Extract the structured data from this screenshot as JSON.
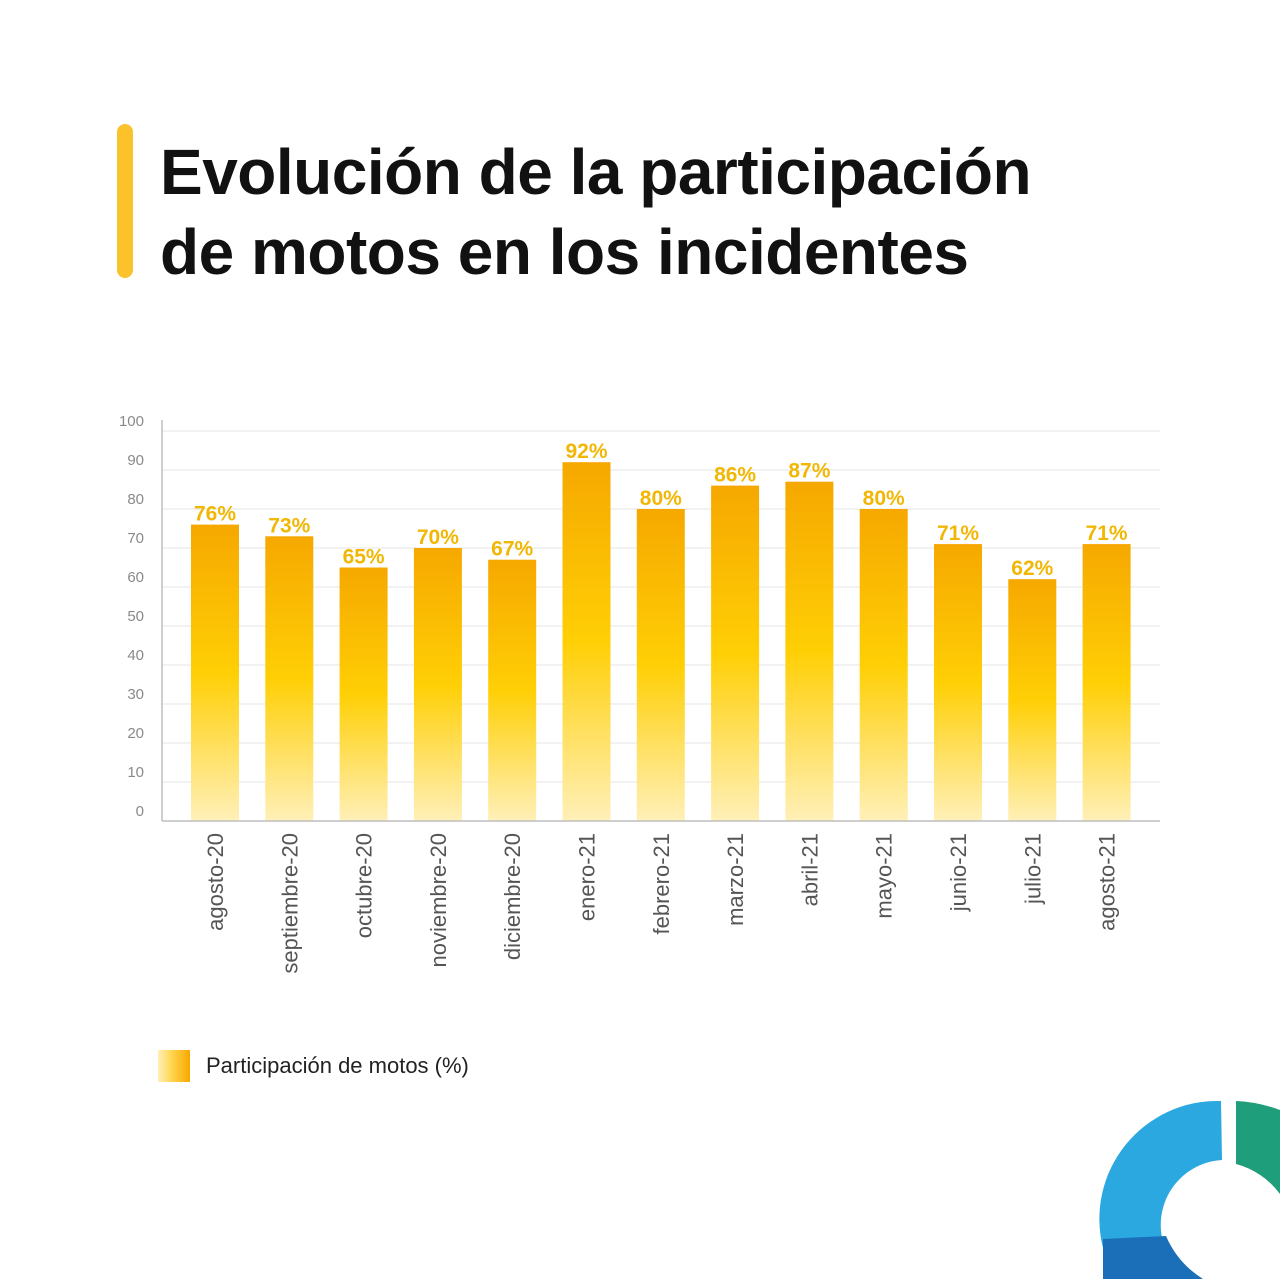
{
  "title_lines": [
    "Evolución de la participación",
    "de motos en los incidentes"
  ],
  "chart_data": {
    "type": "bar",
    "title": "Evolución de la participación de motos en los incidentes",
    "categories": [
      "agosto-20",
      "septiembre-20",
      "octubre-20",
      "noviembre-20",
      "diciembre-20",
      "enero-21",
      "febrero-21",
      "marzo-21",
      "abril-21",
      "mayo-21",
      "junio-21",
      "julio-21",
      "agosto-21"
    ],
    "series": [
      {
        "name": "Participación de motos (%)",
        "values": [
          76,
          73,
          65,
          70,
          67,
          92,
          80,
          86,
          87,
          80,
          71,
          62,
          71
        ],
        "data_labels": [
          "76%",
          "73%",
          "65%",
          "70%",
          "67%",
          "92%",
          "80%",
          "86%",
          "87%",
          "80%",
          "71%",
          "62%",
          "71%"
        ]
      }
    ],
    "yticks": [
      0,
      10,
      20,
      30,
      40,
      50,
      60,
      70,
      80,
      90,
      100
    ],
    "ylim": [
      0,
      100
    ],
    "grid": true,
    "legend_position": "bottom-left",
    "colors": {
      "bar_top": "#f6a800",
      "bar_mid": "#ffcf05",
      "bar_bottom": "#fff0b8",
      "label": "#f2b705",
      "grid": "#e6e6e6",
      "axis": "#bdbdbd",
      "tick_text": "#8a8a8a",
      "category_text": "#555555"
    }
  },
  "legend": {
    "label": "Participación de motos (%)"
  },
  "logo": {
    "colors": [
      "#2ba8e0",
      "#1e9e7a",
      "#1a6fb8"
    ]
  }
}
